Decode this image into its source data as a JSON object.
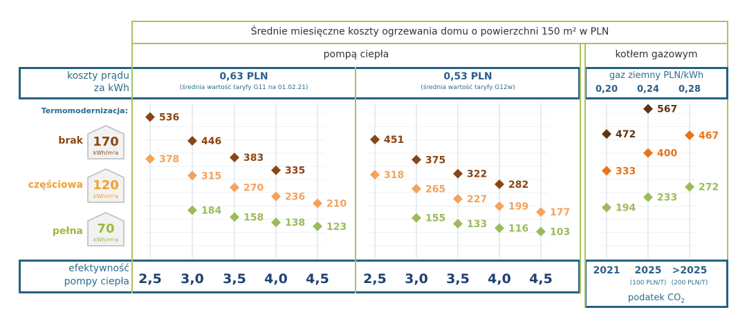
{
  "title": "Średnie miesięczne koszty ogrzewania domu o powierzchni 150 m² w PLN",
  "heat_pump_header": "pompą ciepła",
  "gas_header": "kotłem gazowym",
  "electricity_label_1": "koszty prądu",
  "electricity_label_2": "za kWh",
  "tariffs": [
    {
      "price": "0,63 PLN",
      "note": "(średnia wartość taryfy G11 na 01.02.21)"
    },
    {
      "price": "0,53 PLN",
      "note": "(średnia wartość taryfy G12w)"
    }
  ],
  "gas_price_label": "gaz ziemny PLN/kWh",
  "gas_prices": [
    "0,20",
    "0,24",
    "0,28"
  ],
  "thermo_label": "Termomodernizacja:",
  "levels": [
    {
      "name": "brak",
      "value": "170",
      "unit": "kWh/m²a",
      "color": "#8b4a12"
    },
    {
      "name": "częściowa",
      "value": "120",
      "unit": "kWh/m²a",
      "color": "#f0a030"
    },
    {
      "name": "pełna",
      "value": "70",
      "unit": "kWh/m²a",
      "color": "#9bbb3a"
    }
  ],
  "efficiency_label_1": "efektywność",
  "efficiency_label_2": "pompy ciepła",
  "gas_years": [
    {
      "year": "2021",
      "note": ""
    },
    {
      "year": "2025",
      "note": "(100 PLN/T)"
    },
    {
      "year": ">2025",
      "note": "(200 PLN/T)"
    }
  ],
  "co2_label": "podatek CO",
  "co2_sub": "2",
  "chart_data": [
    {
      "type": "scatter",
      "title": "0,63 PLN",
      "categories": [
        "2,5",
        "3,0",
        "3,5",
        "4,0",
        "4,5"
      ],
      "ylim": [
        0,
        600
      ],
      "grid": true,
      "series": [
        {
          "name": "brak",
          "values": [
            536,
            446,
            383,
            335,
            null
          ],
          "color": "#8b4513"
        },
        {
          "name": "częściowa",
          "values": [
            378,
            315,
            270,
            236,
            210
          ],
          "color": "#f4a25c"
        },
        {
          "name": "pełna",
          "values": [
            null,
            184,
            158,
            138,
            123
          ],
          "color": "#9bbb59"
        }
      ]
    },
    {
      "type": "scatter",
      "title": "0,53 PLN",
      "categories": [
        "2,5",
        "3,0",
        "3,5",
        "4,0",
        "4,5"
      ],
      "ylim": [
        0,
        600
      ],
      "grid": true,
      "series": [
        {
          "name": "brak",
          "values": [
            451,
            375,
            322,
            282,
            null
          ],
          "color": "#8b4513"
        },
        {
          "name": "częściowa",
          "values": [
            318,
            265,
            227,
            199,
            177
          ],
          "color": "#f4a25c"
        },
        {
          "name": "pełna",
          "values": [
            null,
            155,
            133,
            116,
            103
          ],
          "color": "#9bbb59"
        }
      ]
    },
    {
      "type": "scatter",
      "title": "kotłem gazowym",
      "categories": [
        "2021",
        "2025",
        ">2025"
      ],
      "ylim": [
        0,
        600
      ],
      "grid": true,
      "series": [
        {
          "name": "brak",
          "values": [
            472,
            567,
            null
          ],
          "color": "#5e3510"
        },
        {
          "name": "częściowa",
          "values": [
            333,
            400,
            467
          ],
          "color": "#e8731a"
        },
        {
          "name": "pełna",
          "values": [
            194,
            233,
            272
          ],
          "color": "#9bbb59"
        }
      ]
    }
  ]
}
